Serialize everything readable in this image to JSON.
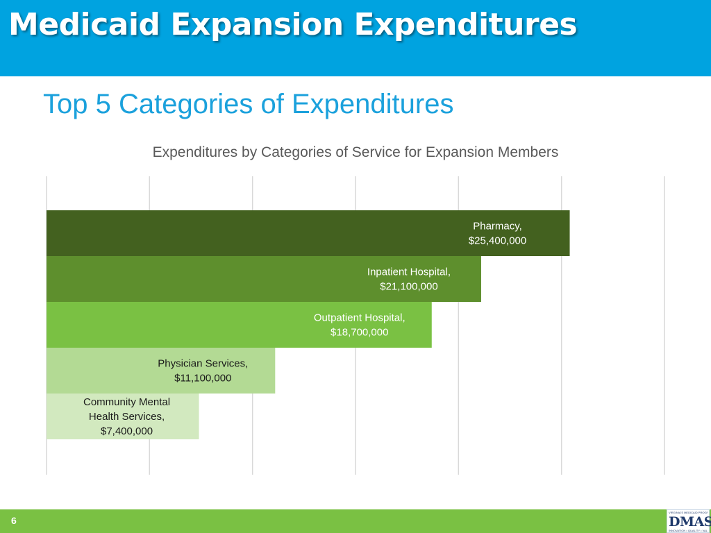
{
  "header": {
    "title": "Medicaid Expansion Expenditures"
  },
  "slide": {
    "subtitle": "Top 5 Categories of Expenditures"
  },
  "colors": {
    "header_bg": "#00a3e0",
    "subtitle": "#1ba1dc",
    "footer_bg": "#7ac143",
    "bars": [
      "#43611f",
      "#5e8f2d",
      "#7ac143",
      "#b3da94",
      "#d2e9bf"
    ]
  },
  "chart_data": {
    "type": "bar",
    "orientation": "horizontal",
    "title": "Expenditures by Categories of Service for Expansion Members",
    "categories": [
      "Pharmacy",
      "Inpatient Hospital",
      "Outpatient Hospital",
      "Physician Services",
      "Community Mental Health Services"
    ],
    "values": [
      25400000,
      21100000,
      18700000,
      11100000,
      7400000
    ],
    "data_labels": [
      [
        "Pharmacy,",
        "$25,400,000"
      ],
      [
        "Inpatient Hospital,",
        "$21,100,000"
      ],
      [
        "Outpatient Hospital,",
        "$18,700,000"
      ],
      [
        "Physician Services,",
        "$11,100,000"
      ],
      [
        "Community Mental",
        "Health Services,",
        "$7,400,000"
      ]
    ],
    "xlim": [
      0,
      30000000
    ],
    "grid": true,
    "axis_labels_visible": false
  },
  "footer": {
    "page_number": "6"
  },
  "logo": {
    "text": "DMAS",
    "tagline_top": "VIRGINIA'S MEDICAID PROGRAM",
    "tagline_bottom": "INNOVATION • QUALITY • VALUE"
  }
}
